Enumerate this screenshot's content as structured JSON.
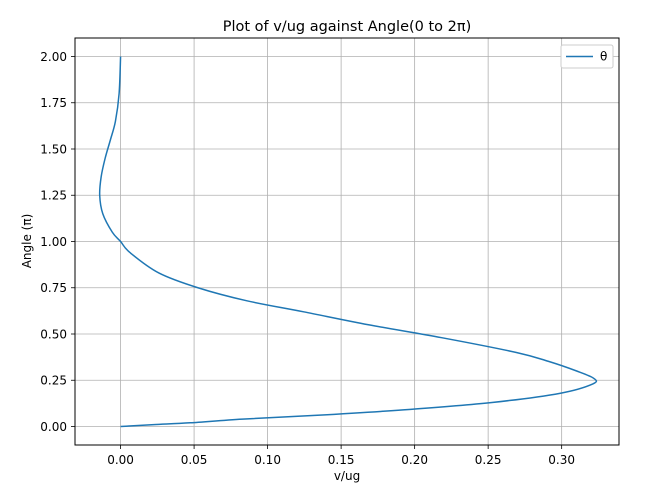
{
  "chart_data": {
    "type": "line",
    "title": "Plot of v/ug against Angle(0 to 2π)",
    "xlabel": "v/ug",
    "ylabel": "Angle (π)",
    "xlim": [
      -0.031,
      0.339
    ],
    "ylim": [
      -0.1,
      2.1
    ],
    "xticks": [
      0.0,
      0.05,
      0.1,
      0.15,
      0.2,
      0.25,
      0.3
    ],
    "xtick_labels": [
      "0.00",
      "0.05",
      "0.10",
      "0.15",
      "0.20",
      "0.25",
      "0.30"
    ],
    "yticks": [
      0.0,
      0.25,
      0.5,
      0.75,
      1.0,
      1.25,
      1.5,
      1.75,
      2.0
    ],
    "ytick_labels": [
      "0.00",
      "0.25",
      "0.50",
      "0.75",
      "1.00",
      "1.25",
      "1.50",
      "1.75",
      "2.00"
    ],
    "grid": true,
    "legend_position": "top-right",
    "series": [
      {
        "name": "θ",
        "color": "#1f77b4",
        "x": [
          0.0,
          0.0226,
          0.0474,
          0.0829,
          0.1322,
          0.1922,
          0.2526,
          0.2992,
          0.3212,
          0.3219,
          0.3102,
          0.2919,
          0.2692,
          0.2184,
          0.1686,
          0.1245,
          0.0856,
          0.0526,
          0.026,
          0.0064,
          0.0,
          -0.0056,
          -0.0121,
          -0.0142,
          -0.0132,
          -0.0105,
          -0.0069,
          -0.0035,
          -0.001,
          0.0
        ],
        "y": [
          0.0,
          0.01,
          0.02,
          0.04,
          0.06,
          0.09,
          0.13,
          0.18,
          0.23,
          0.26,
          0.3,
          0.35,
          0.4,
          0.48,
          0.55,
          0.62,
          0.68,
          0.75,
          0.83,
          0.94,
          1.0,
          1.05,
          1.15,
          1.25,
          1.35,
          1.45,
          1.55,
          1.65,
          1.8,
          2.0
        ]
      }
    ]
  }
}
